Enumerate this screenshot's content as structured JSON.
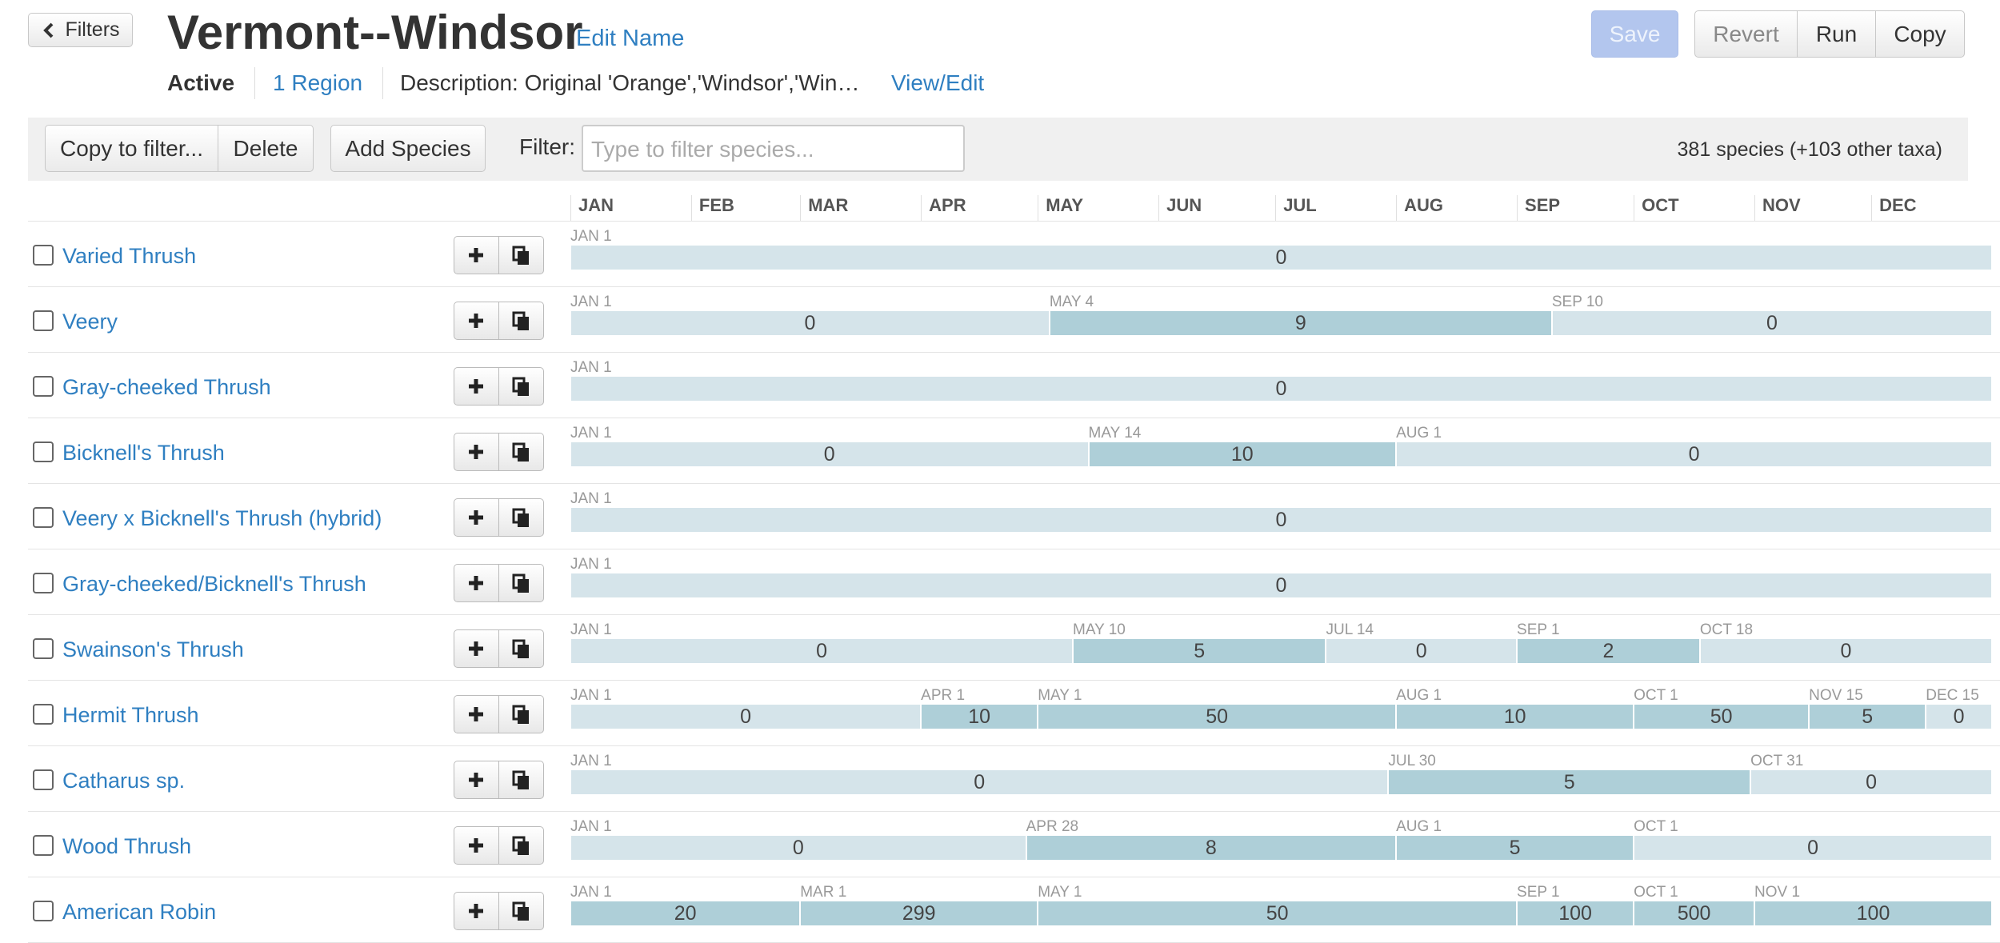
{
  "header": {
    "filters_button": "Filters",
    "title": "Vermont--Windsor",
    "edit_name": "Edit Name",
    "save": "Save",
    "revert": "Revert",
    "run": "Run",
    "copy": "Copy",
    "status": "Active",
    "region": "1 Region",
    "description": "Description: Original 'Orange','Windsor','Win…",
    "view_edit": "View/Edit"
  },
  "toolbar": {
    "copy_to_filter": "Copy to filter...",
    "delete": "Delete",
    "add_species": "Add Species",
    "filter_label": "Filter:",
    "filter_placeholder": "Type to filter species...",
    "species_count": "381 species (+103 other taxa)"
  },
  "months": [
    "JAN",
    "FEB",
    "MAR",
    "APR",
    "MAY",
    "JUN",
    "JUL",
    "AUG",
    "SEP",
    "OCT",
    "NOV",
    "DEC"
  ],
  "rows": [
    {
      "name": "Varied Thrush",
      "periods": [
        {
          "date": "JAN 1",
          "count": 0
        }
      ]
    },
    {
      "name": "Veery",
      "periods": [
        {
          "date": "JAN 1",
          "count": 0
        },
        {
          "date": "MAY 4",
          "count": 9
        },
        {
          "date": "SEP 10",
          "count": 0
        }
      ]
    },
    {
      "name": "Gray-cheeked Thrush",
      "periods": [
        {
          "date": "JAN 1",
          "count": 0
        }
      ]
    },
    {
      "name": "Bicknell's Thrush",
      "periods": [
        {
          "date": "JAN 1",
          "count": 0
        },
        {
          "date": "MAY 14",
          "count": 10
        },
        {
          "date": "AUG 1",
          "count": 0
        }
      ]
    },
    {
      "name": "Veery x Bicknell's Thrush (hybrid)",
      "periods": [
        {
          "date": "JAN 1",
          "count": 0
        }
      ]
    },
    {
      "name": "Gray-cheeked/Bicknell's Thrush",
      "periods": [
        {
          "date": "JAN 1",
          "count": 0
        }
      ]
    },
    {
      "name": "Swainson's Thrush",
      "periods": [
        {
          "date": "JAN 1",
          "count": 0
        },
        {
          "date": "MAY 10",
          "count": 5
        },
        {
          "date": "JUL 14",
          "count": 0
        },
        {
          "date": "SEP 1",
          "count": 2
        },
        {
          "date": "OCT 18",
          "count": 0
        }
      ]
    },
    {
      "name": "Hermit Thrush",
      "periods": [
        {
          "date": "JAN 1",
          "count": 0
        },
        {
          "date": "APR 1",
          "count": 10
        },
        {
          "date": "MAY 1",
          "count": 50
        },
        {
          "date": "AUG 1",
          "count": 10
        },
        {
          "date": "OCT 1",
          "count": 50
        },
        {
          "date": "NOV 15",
          "count": 5
        },
        {
          "date": "DEC 15",
          "count": 0
        }
      ]
    },
    {
      "name": "Catharus sp.",
      "periods": [
        {
          "date": "JAN 1",
          "count": 0
        },
        {
          "date": "JUL 30",
          "count": 5
        },
        {
          "date": "OCT 31",
          "count": 0
        }
      ]
    },
    {
      "name": "Wood Thrush",
      "periods": [
        {
          "date": "JAN 1",
          "count": 0
        },
        {
          "date": "APR 28",
          "count": 8
        },
        {
          "date": "AUG 1",
          "count": 5
        },
        {
          "date": "OCT 1",
          "count": 0
        }
      ]
    },
    {
      "name": "American Robin",
      "periods": [
        {
          "date": "JAN 1",
          "count": 20
        },
        {
          "date": "MAR 1",
          "count": 299
        },
        {
          "date": "MAY 1",
          "count": 50
        },
        {
          "date": "SEP 1",
          "count": 100
        },
        {
          "date": "OCT 1",
          "count": 500
        },
        {
          "date": "NOV 1",
          "count": 100
        }
      ]
    }
  ]
}
